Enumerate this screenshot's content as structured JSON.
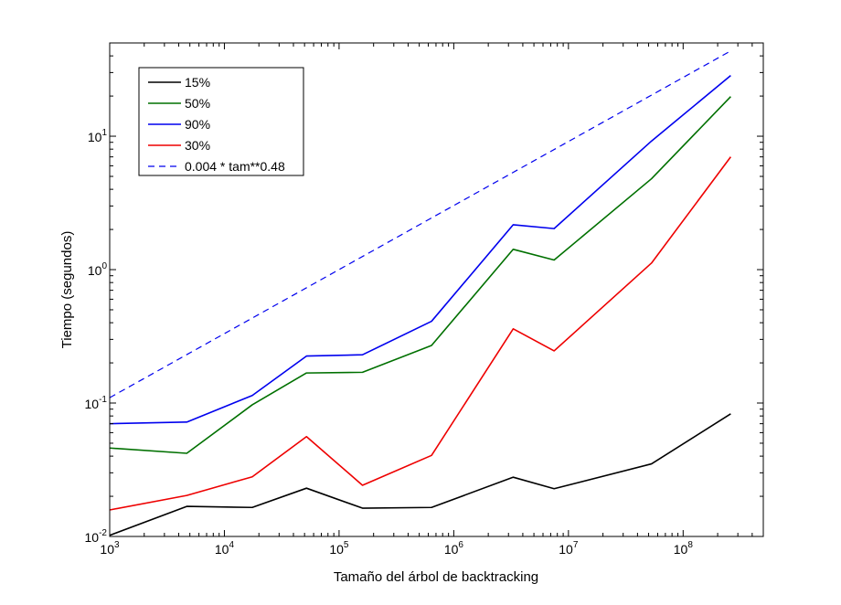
{
  "chart_data": {
    "type": "line",
    "xlabel": "Tamaño del árbol de backtracking",
    "ylabel": "Tiempo (segundos)",
    "xscale": "log",
    "yscale": "log",
    "xlim": [
      1000,
      500000000
    ],
    "ylim": [
      0.01,
      50
    ],
    "x_ticks": [
      {
        "base": "10",
        "exp": "3",
        "value": 1000
      },
      {
        "base": "10",
        "exp": "4",
        "value": 10000
      },
      {
        "base": "10",
        "exp": "5",
        "value": 100000
      },
      {
        "base": "10",
        "exp": "6",
        "value": 1000000
      },
      {
        "base": "10",
        "exp": "7",
        "value": 10000000
      },
      {
        "base": "10",
        "exp": "8",
        "value": 100000000
      }
    ],
    "y_ticks": [
      {
        "base": "10",
        "exp": "-2",
        "value": 0.01
      },
      {
        "base": "10",
        "exp": "-1",
        "value": 0.1
      },
      {
        "base": "10",
        "exp": "0",
        "value": 1
      },
      {
        "base": "10",
        "exp": "1",
        "value": 10
      }
    ],
    "legend_position": "top-left",
    "grid": false,
    "series": [
      {
        "name": "15%",
        "color": "#000000",
        "style": "solid",
        "x": [
          1000,
          4700,
          17500,
          52000,
          160000,
          640000,
          3300000,
          7500000,
          53000000,
          260000000
        ],
        "y": [
          0.0102,
          0.0168,
          0.0165,
          0.023,
          0.0163,
          0.0165,
          0.0278,
          0.0228,
          0.035,
          0.083
        ]
      },
      {
        "name": "50%",
        "color": "#007000",
        "style": "solid",
        "x": [
          1000,
          4700,
          17500,
          52000,
          160000,
          640000,
          3300000,
          7500000,
          53000000,
          260000000
        ],
        "y": [
          0.046,
          0.042,
          0.097,
          0.168,
          0.17,
          0.27,
          1.42,
          1.18,
          4.8,
          19.8
        ]
      },
      {
        "name": "90%",
        "color": "#0000ee",
        "style": "solid",
        "x": [
          1000,
          4700,
          17500,
          52000,
          160000,
          640000,
          3300000,
          7500000,
          53000000,
          260000000
        ],
        "y": [
          0.07,
          0.072,
          0.114,
          0.225,
          0.23,
          0.41,
          2.17,
          2.03,
          9.2,
          28.5
        ]
      },
      {
        "name": "30%",
        "color": "#ee0000",
        "style": "solid",
        "x": [
          1000,
          4700,
          17500,
          52000,
          160000,
          640000,
          3300000,
          7500000,
          53000000,
          260000000
        ],
        "y": [
          0.0158,
          0.0203,
          0.028,
          0.056,
          0.0242,
          0.0405,
          0.36,
          0.246,
          1.12,
          7.0
        ]
      },
      {
        "name": "0.004 * tam**0.48",
        "color": "#0000ee",
        "style": "dashed",
        "x": [
          1000,
          260000000
        ],
        "y": [
          0.1097,
          43.6
        ]
      }
    ]
  }
}
